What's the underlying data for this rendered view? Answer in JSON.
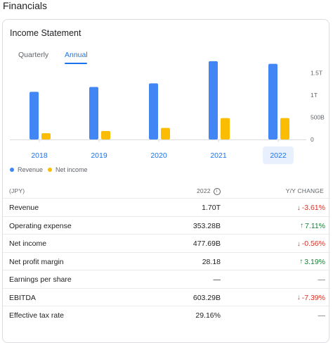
{
  "page": {
    "title": "Financials"
  },
  "card": {
    "title": "Income Statement",
    "tabs": [
      {
        "label": "Quarterly",
        "active": false
      },
      {
        "label": "Annual",
        "active": true
      }
    ]
  },
  "chart_data": {
    "type": "bar",
    "categories": [
      "2018",
      "2019",
      "2020",
      "2021",
      "2022"
    ],
    "selected_category": "2022",
    "series": [
      {
        "name": "Revenue",
        "color": "#4285f4",
        "values": [
          1.07,
          1.18,
          1.26,
          1.76,
          1.7
        ]
      },
      {
        "name": "Net income",
        "color": "#fbbc04",
        "values": [
          0.14,
          0.19,
          0.26,
          0.48,
          0.48
        ]
      }
    ],
    "y_ticks": [
      "0",
      "500B",
      "1T",
      "1.5T"
    ],
    "y_tick_values": [
      0,
      0.5,
      1.0,
      1.5
    ],
    "ylim": [
      0,
      1.9
    ],
    "y_unit": "trillion JPY",
    "grid": false,
    "legend_position": "bottom-left"
  },
  "table": {
    "header": {
      "unit": "(JPY)",
      "year": "2022",
      "change": "Y/Y CHANGE"
    },
    "rows": [
      {
        "label": "Revenue",
        "value": "1.70T",
        "change": "-3.61%",
        "dir": "down"
      },
      {
        "label": "Operating expense",
        "value": "353.28B",
        "change": "7.11%",
        "dir": "up"
      },
      {
        "label": "Net income",
        "value": "477.69B",
        "change": "-0.56%",
        "dir": "down"
      },
      {
        "label": "Net profit margin",
        "value": "28.18",
        "change": "3.19%",
        "dir": "up"
      },
      {
        "label": "Earnings per share",
        "value": "—",
        "change": "—",
        "dir": "none"
      },
      {
        "label": "EBITDA",
        "value": "603.29B",
        "change": "-7.39%",
        "dir": "down"
      },
      {
        "label": "Effective tax rate",
        "value": "29.16%",
        "change": "—",
        "dir": "none"
      }
    ]
  },
  "icons": {
    "info": "info-icon",
    "down": "arrow-down-icon",
    "up": "arrow-up-icon"
  },
  "colors": {
    "accent": "#1a73e8",
    "up": "#188038",
    "down": "#d93025"
  }
}
